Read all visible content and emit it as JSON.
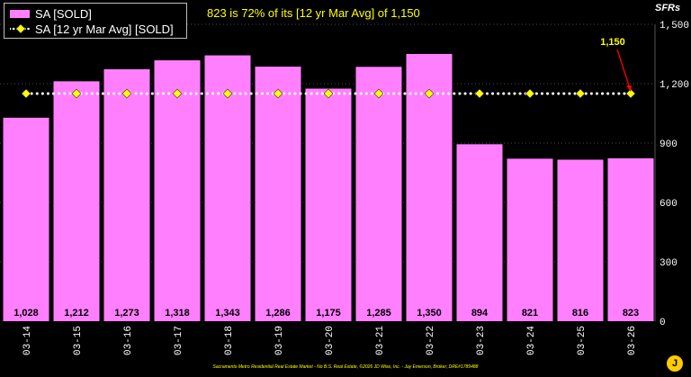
{
  "chart_data": {
    "type": "bar",
    "title": "823 is 72% of its [12 yr Mar Avg] of 1,150",
    "units_label": "SFRs",
    "categories": [
      "03-14",
      "03-15",
      "03-16",
      "03-17",
      "03-18",
      "03-19",
      "03-20",
      "03-21",
      "03-22",
      "03-23",
      "03-24",
      "03-25",
      "03-26"
    ],
    "series": [
      {
        "name": "SA [SOLD]",
        "type": "bar",
        "color": "#ff7fff",
        "values": [
          1028,
          1212,
          1273,
          1318,
          1343,
          1286,
          1175,
          1285,
          1350,
          894,
          821,
          816,
          823
        ],
        "value_labels": [
          "1,028",
          "1,212",
          "1,273",
          "1,318",
          "1,343",
          "1,286",
          "1,175",
          "1,285",
          "1,350",
          "894",
          "821",
          "816",
          "823"
        ]
      },
      {
        "name": "SA [12 yr Mar Avg] [SOLD]",
        "type": "line",
        "color": "#ffff00",
        "line_color": "#ffffff",
        "values": [
          1150,
          1150,
          1150,
          1150,
          1150,
          1150,
          1150,
          1150,
          1150,
          1150,
          1150,
          1150,
          1150
        ]
      }
    ],
    "yticks": [
      0,
      300,
      600,
      900,
      1200,
      1500
    ],
    "ytick_labels": [
      "0",
      "300",
      "600",
      "900",
      "1,200",
      "1,500"
    ],
    "ylim": [
      0,
      1500
    ],
    "annotation": {
      "text": "1,150",
      "category": "03-26",
      "value": 1150,
      "color": "#ffff00",
      "arrow_color": "#ff0000"
    },
    "grid": "horizontal-dotted",
    "legend_position": "top-left"
  },
  "footer": "Sacramento Metro Residential Real Estate Market - No B.S. Real Estate, ©2026 JD Wise, Inc. - Jay Emerson, Broker, DRE#1789488",
  "logo_glyph": "J"
}
